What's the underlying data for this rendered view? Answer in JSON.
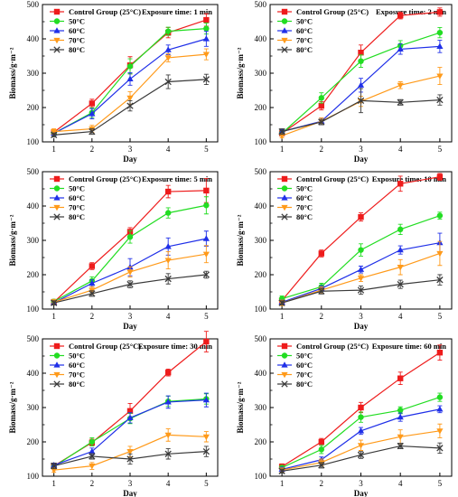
{
  "colors": {
    "control": "#ee1c1c",
    "t50": "#22dd22",
    "t60": "#1f2fe8",
    "t70": "#ff9a1a",
    "t80": "#3a3a3a"
  },
  "series_names": [
    "Control Group (25°C)",
    "50°C",
    "60°C",
    "70°C",
    "80°C"
  ],
  "chart_data": [
    {
      "type": "line",
      "title": "Exposure time: 1 min",
      "xlabel": "Day",
      "ylabel": "Biomass/g·m⁻²",
      "x": [
        1,
        2,
        3,
        4,
        5
      ],
      "xlim": [
        0.7,
        5.3
      ],
      "ylim": [
        100,
        500
      ],
      "yticks": [
        100,
        200,
        300,
        400,
        500
      ],
      "legend": "top-left",
      "series": [
        {
          "name": "Control Group (25°C)",
          "values": [
            128,
            212,
            323,
            418,
            455
          ],
          "errors": [
            8,
            12,
            25,
            15,
            18
          ]
        },
        {
          "name": "50°C",
          "values": [
            125,
            185,
            320,
            422,
            430
          ],
          "errors": [
            7,
            14,
            22,
            12,
            16
          ]
        },
        {
          "name": "60°C",
          "values": [
            125,
            182,
            283,
            368,
            400
          ],
          "errors": [
            6,
            15,
            18,
            14,
            22
          ]
        },
        {
          "name": "70°C",
          "values": [
            130,
            138,
            228,
            345,
            355
          ],
          "errors": [
            8,
            10,
            18,
            12,
            16
          ]
        },
        {
          "name": "80°C",
          "values": [
            120,
            130,
            205,
            275,
            282
          ],
          "errors": [
            6,
            8,
            15,
            20,
            15
          ]
        }
      ]
    },
    {
      "type": "line",
      "title": "Exposure time: 2 min",
      "xlabel": "Day",
      "ylabel": "Biomass/g·m⁻²",
      "x": [
        1,
        2,
        3,
        4,
        5
      ],
      "xlim": [
        0.7,
        5.3
      ],
      "ylim": [
        100,
        500
      ],
      "yticks": [
        100,
        200,
        300,
        400,
        500
      ],
      "legend": "top-left",
      "series": [
        {
          "name": "Control Group (25°C)",
          "values": [
            125,
            205,
            360,
            468,
            478
          ],
          "errors": [
            8,
            12,
            22,
            10,
            12
          ]
        },
        {
          "name": "50°C",
          "values": [
            125,
            228,
            335,
            380,
            418
          ],
          "errors": [
            6,
            15,
            18,
            15,
            15
          ]
        },
        {
          "name": "60°C",
          "values": [
            130,
            160,
            265,
            370,
            378
          ],
          "errors": [
            6,
            10,
            20,
            15,
            18
          ]
        },
        {
          "name": "70°C",
          "values": [
            118,
            160,
            218,
            265,
            292
          ],
          "errors": [
            6,
            10,
            15,
            10,
            25
          ]
        },
        {
          "name": "80°C",
          "values": [
            130,
            158,
            220,
            215,
            222
          ],
          "errors": [
            8,
            8,
            35,
            8,
            15
          ]
        }
      ]
    },
    {
      "type": "line",
      "title": "Exposure time: 5 min",
      "xlabel": "Day",
      "ylabel": "Biomass/g·m⁻²",
      "x": [
        1,
        2,
        3,
        4,
        5
      ],
      "xlim": [
        0.7,
        5.3
      ],
      "ylim": [
        100,
        500
      ],
      "yticks": [
        100,
        200,
        300,
        400,
        500
      ],
      "legend": "top-left",
      "series": [
        {
          "name": "Control Group (25°C)",
          "values": [
            120,
            225,
            325,
            442,
            445
          ],
          "errors": [
            8,
            10,
            12,
            18,
            35
          ]
        },
        {
          "name": "50°C",
          "values": [
            122,
            182,
            310,
            380,
            402
          ],
          "errors": [
            6,
            12,
            18,
            15,
            25
          ]
        },
        {
          "name": "60°C",
          "values": [
            118,
            175,
            222,
            282,
            305
          ],
          "errors": [
            6,
            10,
            25,
            25,
            22
          ]
        },
        {
          "name": "70°C",
          "values": [
            120,
            155,
            208,
            242,
            260
          ],
          "errors": [
            8,
            10,
            15,
            25,
            25
          ]
        },
        {
          "name": "80°C",
          "values": [
            118,
            145,
            172,
            188,
            200
          ],
          "errors": [
            6,
            8,
            10,
            15,
            10
          ]
        }
      ]
    },
    {
      "type": "line",
      "title": "Exposure time: 10 min",
      "xlabel": "Day",
      "ylabel": "Biomass/g·m⁻²",
      "x": [
        1,
        2,
        3,
        4,
        5
      ],
      "xlim": [
        0.7,
        5.3
      ],
      "ylim": [
        100,
        500
      ],
      "yticks": [
        100,
        200,
        300,
        400,
        500
      ],
      "legend": "top-left",
      "series": [
        {
          "name": "Control Group (25°C)",
          "values": [
            125,
            262,
            368,
            465,
            485
          ],
          "errors": [
            8,
            10,
            12,
            22,
            10
          ]
        },
        {
          "name": "50°C",
          "values": [
            130,
            165,
            272,
            332,
            372
          ],
          "errors": [
            8,
            10,
            18,
            15,
            10
          ]
        },
        {
          "name": "60°C",
          "values": [
            120,
            160,
            215,
            272,
            293
          ],
          "errors": [
            6,
            8,
            10,
            12,
            28
          ]
        },
        {
          "name": "70°C",
          "values": [
            118,
            155,
            190,
            222,
            262
          ],
          "errors": [
            8,
            10,
            10,
            22,
            35
          ]
        },
        {
          "name": "80°C",
          "values": [
            118,
            152,
            155,
            172,
            185
          ],
          "errors": [
            6,
            8,
            12,
            12,
            15
          ]
        }
      ]
    },
    {
      "type": "line",
      "title": "Exposure time: 30 min",
      "xlabel": "Day",
      "ylabel": "Biomass/g·m⁻²",
      "x": [
        1,
        2,
        3,
        4,
        5
      ],
      "xlim": [
        0.7,
        5.3
      ],
      "ylim": [
        100,
        500
      ],
      "yticks": [
        100,
        200,
        300,
        400,
        500
      ],
      "legend": "top-left",
      "series": [
        {
          "name": "Control Group (25°C)",
          "values": [
            130,
            198,
            290,
            402,
            492
          ],
          "errors": [
            8,
            10,
            22,
            10,
            30
          ]
        },
        {
          "name": "50°C",
          "values": [
            128,
            200,
            268,
            318,
            325
          ],
          "errors": [
            6,
            12,
            15,
            15,
            15
          ]
        },
        {
          "name": "60°C",
          "values": [
            132,
            172,
            270,
            316,
            322
          ],
          "errors": [
            6,
            10,
            15,
            18,
            20
          ]
        },
        {
          "name": "70°C",
          "values": [
            118,
            130,
            172,
            220,
            215
          ],
          "errors": [
            6,
            10,
            15,
            18,
            15
          ]
        },
        {
          "name": "80°C",
          "values": [
            130,
            158,
            150,
            165,
            172
          ],
          "errors": [
            8,
            8,
            15,
            15,
            15
          ]
        }
      ]
    },
    {
      "type": "line",
      "title": "Exposure time: 60 min",
      "xlabel": "Day",
      "ylabel": "Biomass/g·m⁻²",
      "x": [
        1,
        2,
        3,
        4,
        5
      ],
      "xlim": [
        0.7,
        5.3
      ],
      "ylim": [
        100,
        500
      ],
      "yticks": [
        100,
        200,
        300,
        400,
        500
      ],
      "legend": "top-left",
      "series": [
        {
          "name": "Control Group (25°C)",
          "values": [
            128,
            200,
            300,
            385,
            460
          ],
          "errors": [
            8,
            10,
            15,
            18,
            22
          ]
        },
        {
          "name": "50°C",
          "values": [
            125,
            178,
            272,
            292,
            330
          ],
          "errors": [
            6,
            12,
            15,
            10,
            12
          ]
        },
        {
          "name": "60°C",
          "values": [
            120,
            148,
            232,
            272,
            295
          ],
          "errors": [
            6,
            8,
            10,
            12,
            10
          ]
        },
        {
          "name": "70°C",
          "values": [
            118,
            140,
            190,
            215,
            232
          ],
          "errors": [
            6,
            10,
            15,
            20,
            20
          ]
        },
        {
          "name": "80°C",
          "values": [
            115,
            132,
            162,
            188,
            182
          ],
          "errors": [
            6,
            8,
            10,
            8,
            15
          ]
        }
      ]
    }
  ]
}
